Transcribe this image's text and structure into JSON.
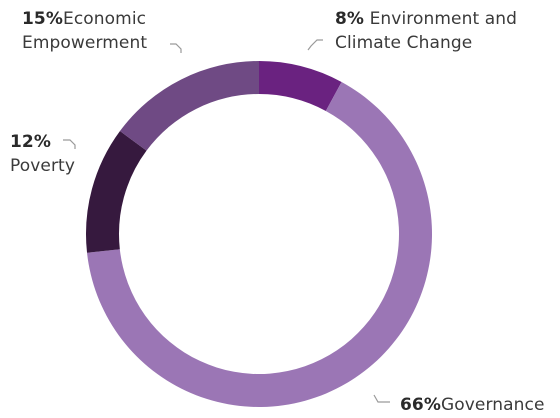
{
  "chart_data": {
    "type": "pie",
    "donut": true,
    "title": "",
    "slices": [
      {
        "label": "Environment and Climate Change",
        "percent_text": "8%",
        "value": 8,
        "color": "#6a2280"
      },
      {
        "label": "Governance",
        "percent_text": "66%",
        "value": 66,
        "color": "#9b76b5"
      },
      {
        "label": "Poverty",
        "percent_text": "12%",
        "value": 12,
        "color": "#36193e"
      },
      {
        "label": "Economic Empowerment",
        "percent_text": "15%",
        "value": 15,
        "color": "#6f4a84"
      }
    ],
    "label_lines": {
      "env": [
        "Environment and",
        "Climate Change"
      ],
      "econ": [
        "Economic",
        "Empowerment"
      ],
      "pov": [
        "Poverty"
      ],
      "gov": [
        "Governance"
      ]
    }
  },
  "colors": {
    "leader": "#9a9a9a",
    "text": "#333333"
  }
}
